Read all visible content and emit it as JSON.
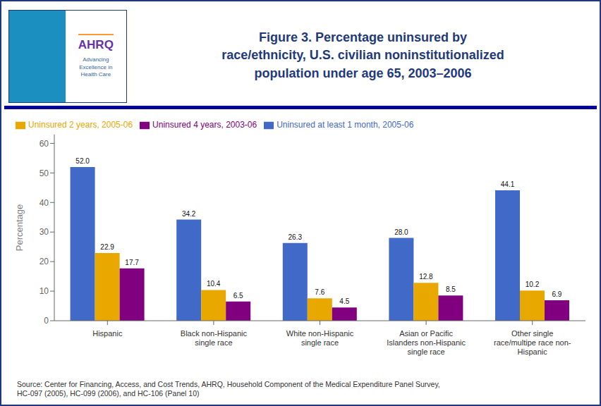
{
  "chart_data": {
    "type": "bar",
    "title": "Figure 3. Percentage uninsured by\nrace/ethnicity, U.S. civilian noninstitutionalized\npopulation under age 65, 2003–2006",
    "categories": [
      "Hispanic",
      "Black non-Hispanic\nsingle race",
      "White non-Hispanic\nsingle race",
      "Asian or Pacific\nIslanders non-Hispanic\nsingle race",
      "Other single\nrace/multipe race non-\nHispanic"
    ],
    "series": [
      {
        "name": "Uninsured at least 1 month, 2005-06",
        "color": "#4169C8",
        "values": [
          52.0,
          34.2,
          26.3,
          28.0,
          44.1
        ],
        "value_labels": [
          "52.0",
          "34.2",
          "26.3",
          "28.0",
          "44.1"
        ]
      },
      {
        "name": "Uninsured 2 years, 2005-06",
        "color": "#E8A800",
        "values": [
          22.9,
          10.4,
          7.6,
          12.8,
          10.2
        ],
        "value_labels": [
          "22.9",
          "10.4",
          "7.6",
          "12.8",
          "10.2"
        ]
      },
      {
        "name": "Uninsured 4 years, 2003-06",
        "color": "#800080",
        "values": [
          17.7,
          6.5,
          4.5,
          8.5,
          6.9
        ],
        "value_labels": [
          "17.7",
          "6.5",
          "4.5",
          "8.5",
          "6.9"
        ]
      }
    ],
    "ylabel": "Percentage",
    "ylim": [
      0,
      63
    ],
    "yticks": [
      0,
      10,
      20,
      30,
      40,
      50,
      60
    ],
    "grid": false,
    "legend": "upper left",
    "data_labels": true,
    "annotations": [
      "AHRQ",
      "Advancing\nExcellence in\nHealth Care",
      "Source: Center for Financing, Access, and Cost Trends, AHRQ, Household Component of the Medical Expenditure Panel Survey,\nHC-097 (2005), HC-099 (2006), and HC-106 (Panel 10)"
    ]
  }
}
